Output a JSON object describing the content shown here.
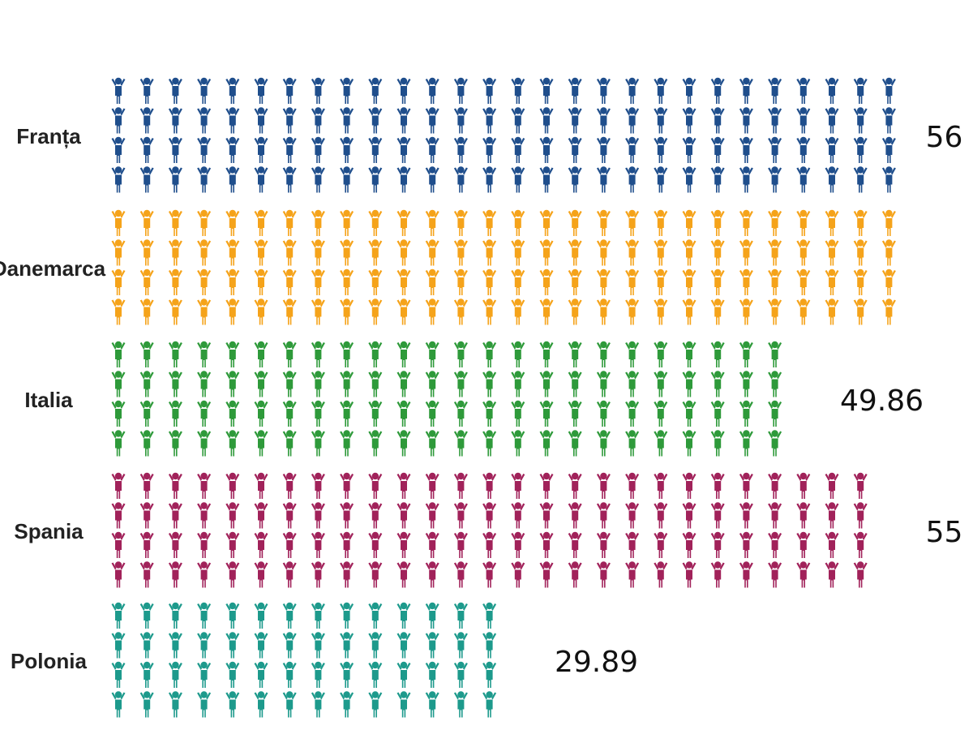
{
  "chart_data": {
    "type": "bar",
    "orientation": "horizontal",
    "style": "pictogram",
    "icon": "person-arms-up-icon",
    "rows_per_bar": 4,
    "categories": [
      "Franța",
      "Danemarca",
      "Italia",
      "Spania",
      "Polonia"
    ],
    "values": [
      56,
      56,
      49.86,
      55,
      29.89
    ],
    "value_labels": [
      "56",
      "",
      "49.86",
      "55",
      "29.89"
    ],
    "colors": [
      "#1f4e8c",
      "#f5a31a",
      "#2e9a3a",
      "#a1225a",
      "#1d9a8c"
    ],
    "title": "",
    "xlabel": "",
    "ylabel": ""
  }
}
